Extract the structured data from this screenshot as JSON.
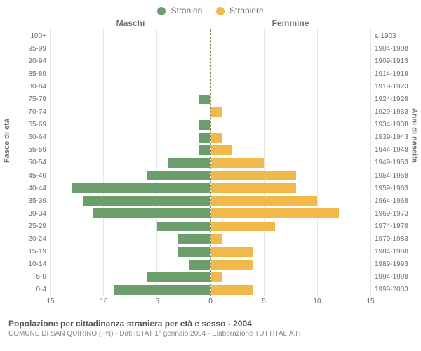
{
  "legend": {
    "male_label": "Stranieri",
    "female_label": "Straniere",
    "male_color": "#6b9e6b",
    "female_color": "#f0b94a"
  },
  "titles": {
    "male_side": "Maschi",
    "female_side": "Femmine",
    "y_axis_left": "Fasce di età",
    "y_axis_right": "Anni di nascita"
  },
  "chart": {
    "type": "population-pyramid",
    "x_max": 15,
    "x_ticks": [
      0,
      5,
      10,
      15
    ],
    "background_color": "#ffffff",
    "grid_color": "#e5e5e5",
    "center_line_color": "#8a8a4a",
    "bar_height_ratio": 0.76,
    "age_groups": [
      {
        "age": "100+",
        "birth": "≤ 1903",
        "m": 0,
        "f": 0
      },
      {
        "age": "95-99",
        "birth": "1904-1908",
        "m": 0,
        "f": 0
      },
      {
        "age": "90-94",
        "birth": "1909-1913",
        "m": 0,
        "f": 0
      },
      {
        "age": "85-89",
        "birth": "1914-1918",
        "m": 0,
        "f": 0
      },
      {
        "age": "80-84",
        "birth": "1919-1923",
        "m": 0,
        "f": 0
      },
      {
        "age": "75-79",
        "birth": "1924-1928",
        "m": 1,
        "f": 0
      },
      {
        "age": "70-74",
        "birth": "1929-1933",
        "m": 0,
        "f": 1
      },
      {
        "age": "65-69",
        "birth": "1934-1938",
        "m": 1,
        "f": 0
      },
      {
        "age": "60-64",
        "birth": "1939-1943",
        "m": 1,
        "f": 1
      },
      {
        "age": "55-59",
        "birth": "1944-1948",
        "m": 1,
        "f": 2
      },
      {
        "age": "50-54",
        "birth": "1949-1953",
        "m": 4,
        "f": 5
      },
      {
        "age": "45-49",
        "birth": "1954-1958",
        "m": 6,
        "f": 8
      },
      {
        "age": "40-44",
        "birth": "1959-1963",
        "m": 13,
        "f": 8
      },
      {
        "age": "35-39",
        "birth": "1964-1968",
        "m": 12,
        "f": 10
      },
      {
        "age": "30-34",
        "birth": "1969-1973",
        "m": 11,
        "f": 12
      },
      {
        "age": "25-29",
        "birth": "1974-1978",
        "m": 5,
        "f": 6
      },
      {
        "age": "20-24",
        "birth": "1979-1983",
        "m": 3,
        "f": 1
      },
      {
        "age": "15-19",
        "birth": "1984-1988",
        "m": 3,
        "f": 4
      },
      {
        "age": "10-14",
        "birth": "1989-1993",
        "m": 2,
        "f": 4
      },
      {
        "age": "5-9",
        "birth": "1994-1998",
        "m": 6,
        "f": 1
      },
      {
        "age": "0-4",
        "birth": "1999-2003",
        "m": 9,
        "f": 4
      }
    ]
  },
  "caption": {
    "line1": "Popolazione per cittadinanza straniera per età e sesso - 2004",
    "line2": "COMUNE DI SAN QUIRINO (PN) - Dati ISTAT 1° gennaio 2004 - Elaborazione TUTTITALIA.IT"
  }
}
